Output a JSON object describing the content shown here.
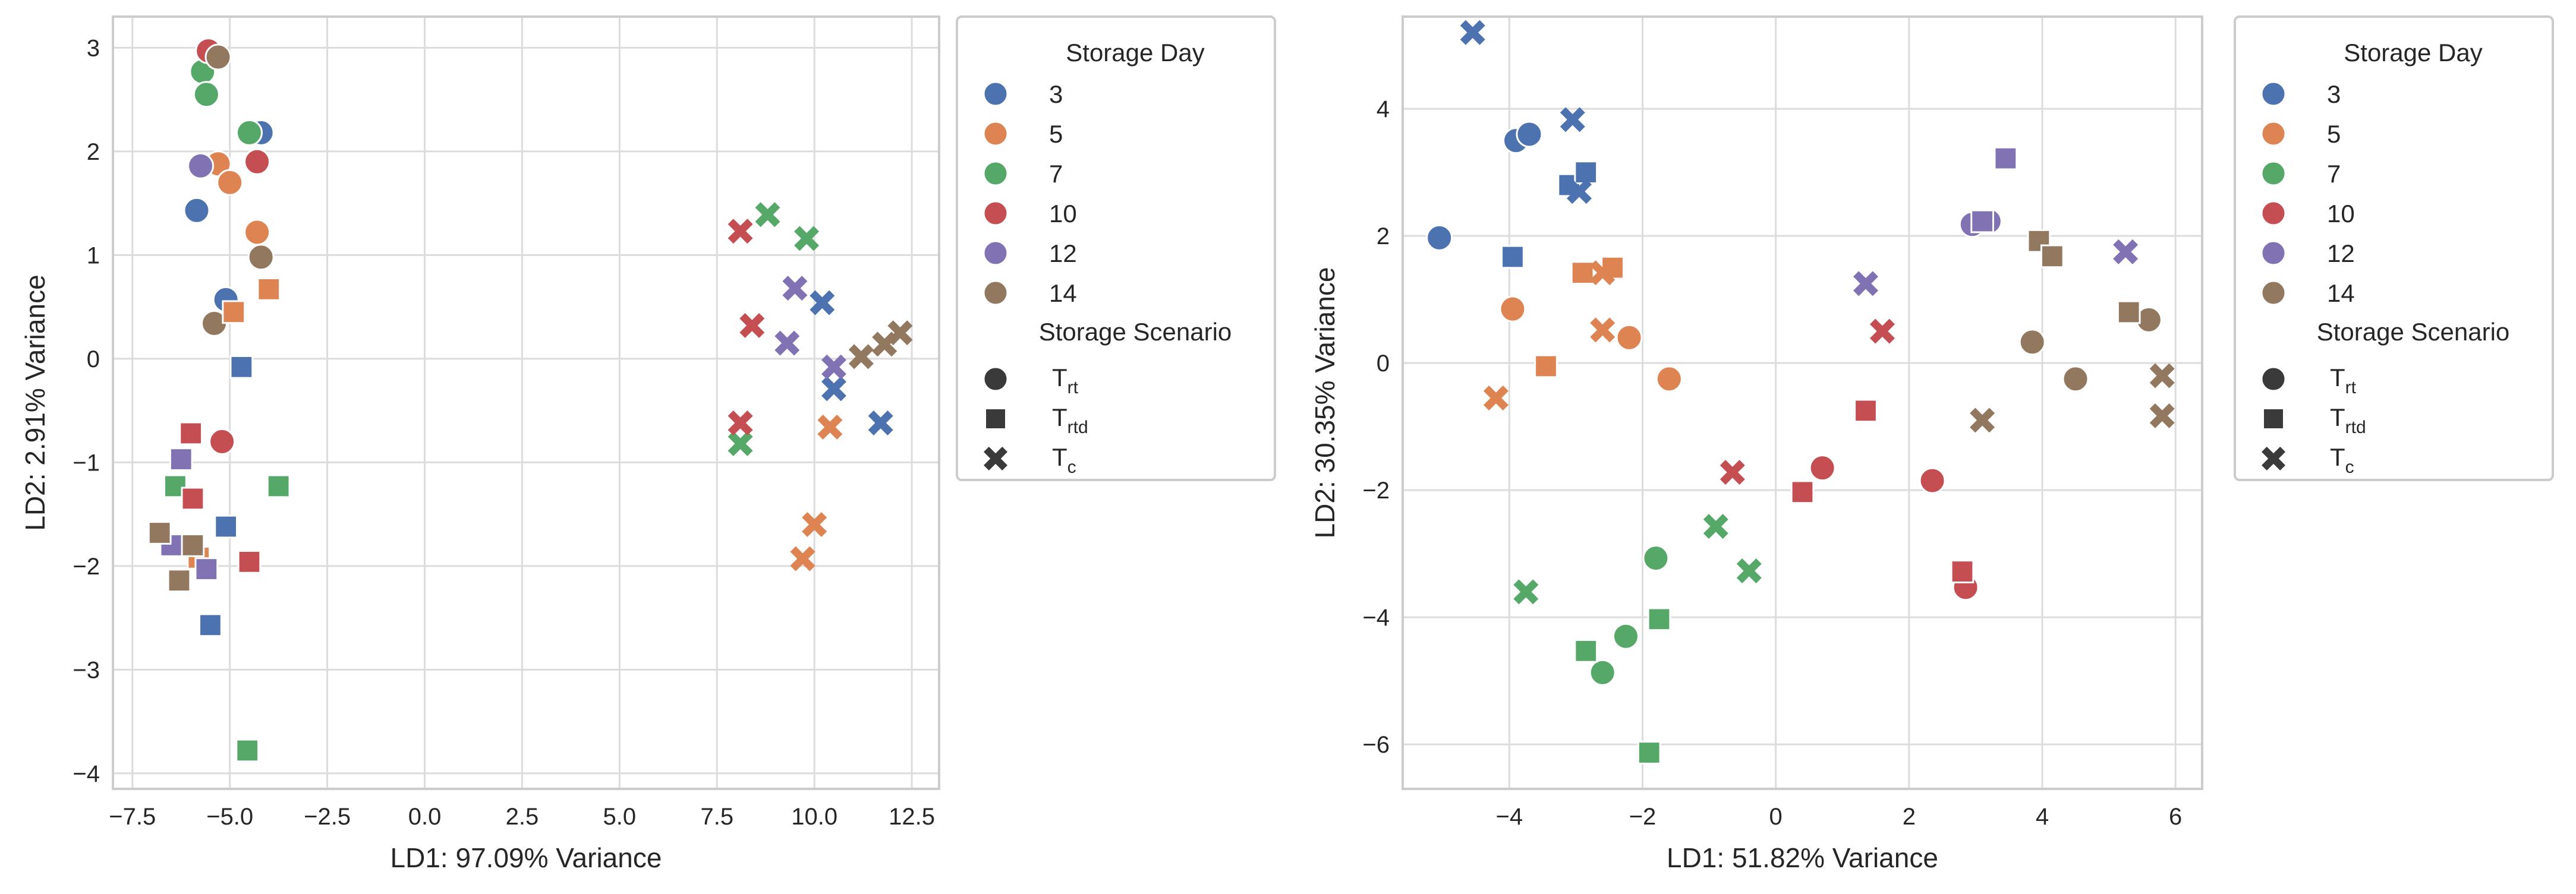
{
  "legend": {
    "hue_title": "Storage Day",
    "days": [
      {
        "label": "3",
        "color": "#4c72b0"
      },
      {
        "label": "5",
        "color": "#dd8452"
      },
      {
        "label": "7",
        "color": "#55a868"
      },
      {
        "label": "10",
        "color": "#c44e52"
      },
      {
        "label": "12",
        "color": "#8172b3"
      },
      {
        "label": "14",
        "color": "#937860"
      }
    ],
    "style_title": "Storage Scenario",
    "scenarios": [
      {
        "key": "circle",
        "base": "T",
        "sub": "rt"
      },
      {
        "key": "square",
        "base": "T",
        "sub": "rtd"
      },
      {
        "key": "x",
        "base": "T",
        "sub": "c"
      }
    ]
  },
  "chart_data": [
    {
      "type": "scatter",
      "title": "",
      "xlabel": "LD1: 97.09% Variance",
      "ylabel": "LD2: 2.91% Variance",
      "xlim": [
        -8.0,
        13.2
      ],
      "ylim": [
        -4.15,
        3.3
      ],
      "xticks": [
        -7.5,
        -5.0,
        -2.5,
        0.0,
        2.5,
        5.0,
        7.5,
        10.0,
        12.5
      ],
      "xtick_labels": [
        "−7.5",
        "−5.0",
        "−2.5",
        "0.0",
        "2.5",
        "5.0",
        "7.5",
        "10.0",
        "12.5"
      ],
      "yticks": [
        -4,
        -3,
        -2,
        -1,
        0,
        1,
        2,
        3
      ],
      "ytick_labels": [
        "−4",
        "−3",
        "−2",
        "−1",
        "0",
        "1",
        "2",
        "3"
      ],
      "grid": true,
      "legend_position": "outside-right",
      "points": [
        {
          "day": "3",
          "s": "circle",
          "x": -5.1,
          "y": 0.57
        },
        {
          "day": "3",
          "s": "circle",
          "x": -5.85,
          "y": 1.43
        },
        {
          "day": "3",
          "s": "circle",
          "x": -4.2,
          "y": 2.18
        },
        {
          "day": "5",
          "s": "circle",
          "x": -5.3,
          "y": 1.88
        },
        {
          "day": "5",
          "s": "circle",
          "x": -5.0,
          "y": 1.7
        },
        {
          "day": "5",
          "s": "circle",
          "x": -4.3,
          "y": 1.22
        },
        {
          "day": "7",
          "s": "circle",
          "x": -5.7,
          "y": 2.77
        },
        {
          "day": "7",
          "s": "circle",
          "x": -5.6,
          "y": 2.55
        },
        {
          "day": "7",
          "s": "circle",
          "x": -4.5,
          "y": 2.18
        },
        {
          "day": "10",
          "s": "circle",
          "x": -5.55,
          "y": 2.97
        },
        {
          "day": "10",
          "s": "circle",
          "x": -4.3,
          "y": 1.9
        },
        {
          "day": "10",
          "s": "circle",
          "x": -5.2,
          "y": -0.8
        },
        {
          "day": "12",
          "s": "circle",
          "x": -5.75,
          "y": 1.86
        },
        {
          "day": "14",
          "s": "circle",
          "x": -5.3,
          "y": 2.91
        },
        {
          "day": "14",
          "s": "circle",
          "x": -4.2,
          "y": 0.98
        },
        {
          "day": "14",
          "s": "circle",
          "x": -5.4,
          "y": 0.34
        },
        {
          "day": "3",
          "s": "square",
          "x": -4.7,
          "y": -0.08
        },
        {
          "day": "3",
          "s": "square",
          "x": -5.1,
          "y": -1.62
        },
        {
          "day": "3",
          "s": "square",
          "x": -5.5,
          "y": -2.57
        },
        {
          "day": "5",
          "s": "square",
          "x": -4.9,
          "y": 0.45
        },
        {
          "day": "5",
          "s": "square",
          "x": -4.0,
          "y": 0.67
        },
        {
          "day": "5",
          "s": "square",
          "x": -5.8,
          "y": -1.92
        },
        {
          "day": "7",
          "s": "square",
          "x": -6.4,
          "y": -1.23
        },
        {
          "day": "7",
          "s": "square",
          "x": -3.75,
          "y": -1.23
        },
        {
          "day": "7",
          "s": "square",
          "x": -4.55,
          "y": -3.78
        },
        {
          "day": "10",
          "s": "square",
          "x": -6.0,
          "y": -0.72
        },
        {
          "day": "10",
          "s": "square",
          "x": -5.95,
          "y": -1.35
        },
        {
          "day": "10",
          "s": "square",
          "x": -4.5,
          "y": -1.96
        },
        {
          "day": "12",
          "s": "square",
          "x": -6.25,
          "y": -0.97
        },
        {
          "day": "12",
          "s": "square",
          "x": -6.5,
          "y": -1.8
        },
        {
          "day": "12",
          "s": "square",
          "x": -5.6,
          "y": -2.03
        },
        {
          "day": "14",
          "s": "square",
          "x": -6.8,
          "y": -1.68
        },
        {
          "day": "14",
          "s": "square",
          "x": -5.95,
          "y": -1.8
        },
        {
          "day": "14",
          "s": "square",
          "x": -6.3,
          "y": -2.14
        },
        {
          "day": "3",
          "s": "x",
          "x": 10.2,
          "y": 0.54
        },
        {
          "day": "3",
          "s": "x",
          "x": 10.5,
          "y": -0.29
        },
        {
          "day": "3",
          "s": "x",
          "x": 11.7,
          "y": -0.62
        },
        {
          "day": "5",
          "s": "x",
          "x": 10.4,
          "y": -0.66
        },
        {
          "day": "5",
          "s": "x",
          "x": 10.0,
          "y": -1.6
        },
        {
          "day": "5",
          "s": "x",
          "x": 9.7,
          "y": -1.93
        },
        {
          "day": "7",
          "s": "x",
          "x": 8.8,
          "y": 1.39
        },
        {
          "day": "7",
          "s": "x",
          "x": 9.8,
          "y": 1.16
        },
        {
          "day": "7",
          "s": "x",
          "x": 8.1,
          "y": -0.82
        },
        {
          "day": "10",
          "s": "x",
          "x": 8.1,
          "y": 1.23
        },
        {
          "day": "10",
          "s": "x",
          "x": 8.4,
          "y": 0.32
        },
        {
          "day": "10",
          "s": "x",
          "x": 8.1,
          "y": -0.62
        },
        {
          "day": "12",
          "s": "x",
          "x": 9.5,
          "y": 0.68
        },
        {
          "day": "12",
          "s": "x",
          "x": 9.3,
          "y": 0.15
        },
        {
          "day": "12",
          "s": "x",
          "x": 10.5,
          "y": -0.08
        },
        {
          "day": "14",
          "s": "x",
          "x": 11.2,
          "y": 0.02
        },
        {
          "day": "14",
          "s": "x",
          "x": 11.8,
          "y": 0.14
        },
        {
          "day": "14",
          "s": "x",
          "x": 12.2,
          "y": 0.25
        }
      ]
    },
    {
      "type": "scatter",
      "title": "",
      "xlabel": "LD1: 51.82% Variance",
      "ylabel": "LD2: 30.35% Variance",
      "xlim": [
        -5.6,
        6.4
      ],
      "ylim": [
        -6.7,
        5.45
      ],
      "xticks": [
        -4,
        -2,
        0,
        2,
        4,
        6
      ],
      "xtick_labels": [
        "−4",
        "−2",
        "0",
        "2",
        "4",
        "6"
      ],
      "yticks": [
        -6,
        -4,
        -2,
        0,
        2,
        4
      ],
      "ytick_labels": [
        "−6",
        "−4",
        "−2",
        "0",
        "2",
        "4"
      ],
      "grid": true,
      "legend_position": "outside-right",
      "points": [
        {
          "day": "3",
          "s": "circle",
          "x": -5.05,
          "y": 1.97
        },
        {
          "day": "3",
          "s": "circle",
          "x": -3.9,
          "y": 3.5
        },
        {
          "day": "3",
          "s": "circle",
          "x": -3.7,
          "y": 3.6
        },
        {
          "day": "5",
          "s": "circle",
          "x": -3.95,
          "y": 0.85
        },
        {
          "day": "5",
          "s": "circle",
          "x": -2.2,
          "y": 0.4
        },
        {
          "day": "5",
          "s": "circle",
          "x": -1.6,
          "y": -0.25
        },
        {
          "day": "7",
          "s": "circle",
          "x": -1.8,
          "y": -3.07
        },
        {
          "day": "7",
          "s": "circle",
          "x": -2.25,
          "y": -4.3
        },
        {
          "day": "7",
          "s": "circle",
          "x": -2.6,
          "y": -4.87
        },
        {
          "day": "10",
          "s": "circle",
          "x": 0.7,
          "y": -1.65
        },
        {
          "day": "10",
          "s": "circle",
          "x": 2.35,
          "y": -1.85
        },
        {
          "day": "10",
          "s": "circle",
          "x": 2.85,
          "y": -3.53
        },
        {
          "day": "12",
          "s": "circle",
          "x": 2.95,
          "y": 2.18
        },
        {
          "day": "12",
          "s": "circle",
          "x": 3.2,
          "y": 2.23
        },
        {
          "day": "14",
          "s": "circle",
          "x": 3.85,
          "y": 0.33
        },
        {
          "day": "14",
          "s": "circle",
          "x": 4.5,
          "y": -0.25
        },
        {
          "day": "14",
          "s": "circle",
          "x": 5.6,
          "y": 0.68
        },
        {
          "day": "3",
          "s": "square",
          "x": -3.95,
          "y": 1.67
        },
        {
          "day": "3",
          "s": "square",
          "x": -3.1,
          "y": 2.8
        },
        {
          "day": "3",
          "s": "square",
          "x": -2.85,
          "y": 3.0
        },
        {
          "day": "5",
          "s": "square",
          "x": -3.45,
          "y": -0.05
        },
        {
          "day": "5",
          "s": "square",
          "x": -2.9,
          "y": 1.42
        },
        {
          "day": "5",
          "s": "square",
          "x": -2.45,
          "y": 1.5
        },
        {
          "day": "7",
          "s": "square",
          "x": -2.85,
          "y": -4.53
        },
        {
          "day": "7",
          "s": "square",
          "x": -1.75,
          "y": -4.03
        },
        {
          "day": "7",
          "s": "square",
          "x": -1.9,
          "y": -6.13
        },
        {
          "day": "10",
          "s": "square",
          "x": 0.4,
          "y": -2.03
        },
        {
          "day": "10",
          "s": "square",
          "x": 1.35,
          "y": -0.75
        },
        {
          "day": "10",
          "s": "square",
          "x": 2.8,
          "y": -3.28
        },
        {
          "day": "12",
          "s": "square",
          "x": 3.1,
          "y": 2.23
        },
        {
          "day": "12",
          "s": "square",
          "x": 3.45,
          "y": 3.22
        },
        {
          "day": "14",
          "s": "square",
          "x": 3.95,
          "y": 1.92
        },
        {
          "day": "14",
          "s": "square",
          "x": 4.15,
          "y": 1.68
        },
        {
          "day": "14",
          "s": "square",
          "x": 5.3,
          "y": 0.8
        },
        {
          "day": "3",
          "s": "x",
          "x": -4.55,
          "y": 5.2
        },
        {
          "day": "3",
          "s": "x",
          "x": -3.05,
          "y": 3.83
        },
        {
          "day": "3",
          "s": "x",
          "x": -2.95,
          "y": 2.7
        },
        {
          "day": "5",
          "s": "x",
          "x": -4.2,
          "y": -0.55
        },
        {
          "day": "5",
          "s": "x",
          "x": -2.6,
          "y": 0.52
        },
        {
          "day": "5",
          "s": "x",
          "x": -2.6,
          "y": 1.42
        },
        {
          "day": "7",
          "s": "x",
          "x": -3.75,
          "y": -3.6
        },
        {
          "day": "7",
          "s": "x",
          "x": -0.9,
          "y": -2.57
        },
        {
          "day": "7",
          "s": "x",
          "x": -0.4,
          "y": -3.27
        },
        {
          "day": "10",
          "s": "x",
          "x": -0.65,
          "y": -1.72
        },
        {
          "day": "10",
          "s": "x",
          "x": 1.6,
          "y": 0.5
        },
        {
          "day": "12",
          "s": "x",
          "x": 1.35,
          "y": 1.25
        },
        {
          "day": "12",
          "s": "x",
          "x": 5.25,
          "y": 1.75
        },
        {
          "day": "14",
          "s": "x",
          "x": 3.1,
          "y": -0.9
        },
        {
          "day": "14",
          "s": "x",
          "x": 5.8,
          "y": -0.2
        },
        {
          "day": "14",
          "s": "x",
          "x": 5.8,
          "y": -0.83
        }
      ]
    }
  ]
}
